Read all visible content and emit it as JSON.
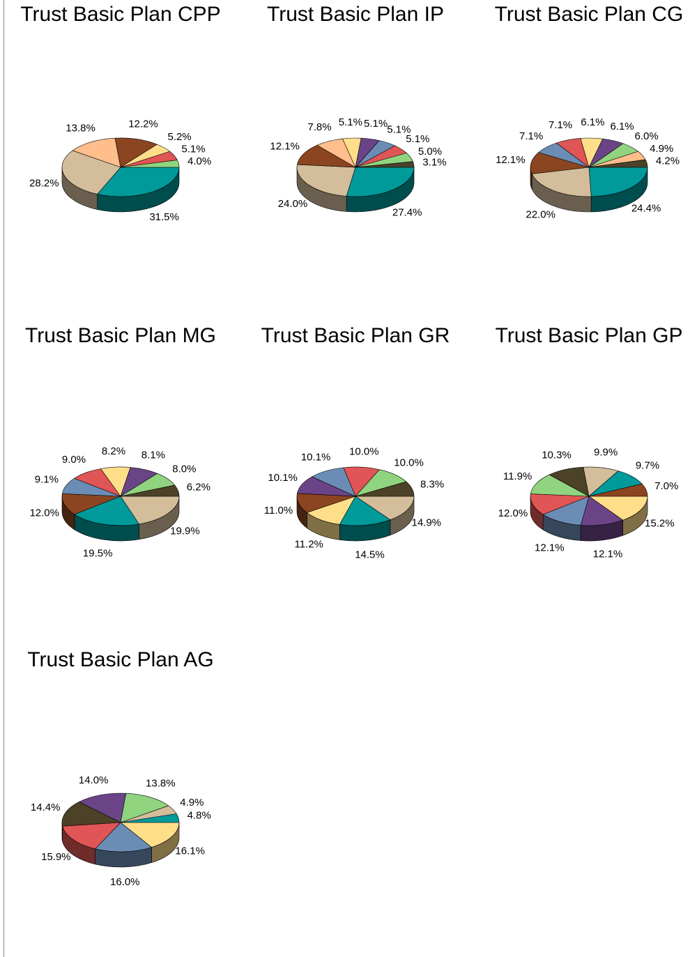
{
  "chart_data": [
    {
      "type": "pie",
      "title": "Trust Basic Plan CPP",
      "values": [
        31.5,
        28.2,
        13.8,
        12.2,
        5.2,
        5.1,
        4.0
      ],
      "value_labels": [
        "31.5%",
        "28.2%",
        "13.8%",
        "12.2%",
        "5.2%",
        "5.1%",
        "4.0%"
      ],
      "colors": [
        "#009a9a",
        "#d4bd9b",
        "#ffbe8c",
        "#8b4520",
        "#ffde8a",
        "#e05555",
        "#90d47f"
      ]
    },
    {
      "type": "pie",
      "title": "Trust Basic Plan IP",
      "values": [
        27.4,
        24.0,
        12.1,
        7.8,
        5.1,
        5.1,
        5.1,
        5.1,
        5.0,
        3.1
      ],
      "value_labels": [
        "27.4%",
        "24.0%",
        "12.1%",
        "7.8%",
        "5.1%",
        "5.1%",
        "5.1%",
        "5.1%",
        "5.0%",
        "3.1%"
      ],
      "colors": [
        "#009a9a",
        "#d4bd9b",
        "#8b4520",
        "#ffbe8c",
        "#ffde8a",
        "#6b4487",
        "#6b8db5",
        "#e05555",
        "#90d47f",
        "#4b4228"
      ]
    },
    {
      "type": "pie",
      "title": "Trust Basic Plan CG",
      "values": [
        24.4,
        22.0,
        12.1,
        7.1,
        7.1,
        6.1,
        6.1,
        6.0,
        4.9,
        4.2
      ],
      "value_labels": [
        "24.4%",
        "22.0%",
        "12.1%",
        "7.1%",
        "7.1%",
        "6.1%",
        "6.1%",
        "6.0%",
        "4.9%",
        "4.2%"
      ],
      "colors": [
        "#009a9a",
        "#d4bd9b",
        "#8b4520",
        "#6b8db5",
        "#e05555",
        "#ffde8a",
        "#6b4487",
        "#90d47f",
        "#ffbe8c",
        "#4b4228"
      ]
    },
    {
      "type": "pie",
      "title": "Trust Basic Plan MG",
      "values": [
        19.9,
        19.5,
        12.0,
        9.1,
        9.0,
        8.2,
        8.1,
        8.0,
        6.2
      ],
      "value_labels": [
        "19.9%",
        "19.5%",
        "12.0%",
        "9.1%",
        "9.0%",
        "8.2%",
        "8.1%",
        "8.0%",
        "6.2%"
      ],
      "colors": [
        "#d4bd9b",
        "#009a9a",
        "#8b4520",
        "#6b8db5",
        "#e05555",
        "#ffde8a",
        "#6b4487",
        "#90d47f",
        "#4b4228"
      ]
    },
    {
      "type": "pie",
      "title": "Trust Basic Plan GR",
      "values": [
        14.9,
        14.5,
        11.2,
        11.0,
        10.1,
        10.1,
        10.0,
        10.0,
        8.3
      ],
      "value_labels": [
        "14.9%",
        "14.5%",
        "11.2%",
        "11.0%",
        "10.1%",
        "10.1%",
        "10.0%",
        "10.0%",
        "8.3%"
      ],
      "colors": [
        "#d4bd9b",
        "#009a9a",
        "#ffde8a",
        "#8b4520",
        "#6b4487",
        "#6b8db5",
        "#e05555",
        "#90d47f",
        "#4b4228"
      ]
    },
    {
      "type": "pie",
      "title": "Trust Basic Plan GP",
      "values": [
        15.2,
        12.1,
        12.1,
        12.0,
        11.9,
        10.3,
        9.9,
        9.7,
        7.0
      ],
      "value_labels": [
        "15.2%",
        "12.1%",
        "12.1%",
        "12.0%",
        "11.9%",
        "10.3%",
        "9.9%",
        "9.7%",
        "7.0%"
      ],
      "colors": [
        "#ffde8a",
        "#6b4487",
        "#6b8db5",
        "#e05555",
        "#90d47f",
        "#4b4228",
        "#d4bd9b",
        "#009a9a",
        "#8b4520"
      ]
    },
    {
      "type": "pie",
      "title": "Trust Basic Plan AG",
      "values": [
        16.1,
        16.0,
        15.9,
        14.4,
        14.0,
        13.8,
        4.9,
        4.8
      ],
      "value_labels": [
        "16.1%",
        "16.0%",
        "15.9%",
        "14.4%",
        "14.0%",
        "13.8%",
        "4.9%",
        "4.8%"
      ],
      "colors": [
        "#ffde8a",
        "#6b8db5",
        "#e05555",
        "#4b4228",
        "#6b4487",
        "#90d47f",
        "#d4bd9b",
        "#009a9a"
      ]
    }
  ]
}
